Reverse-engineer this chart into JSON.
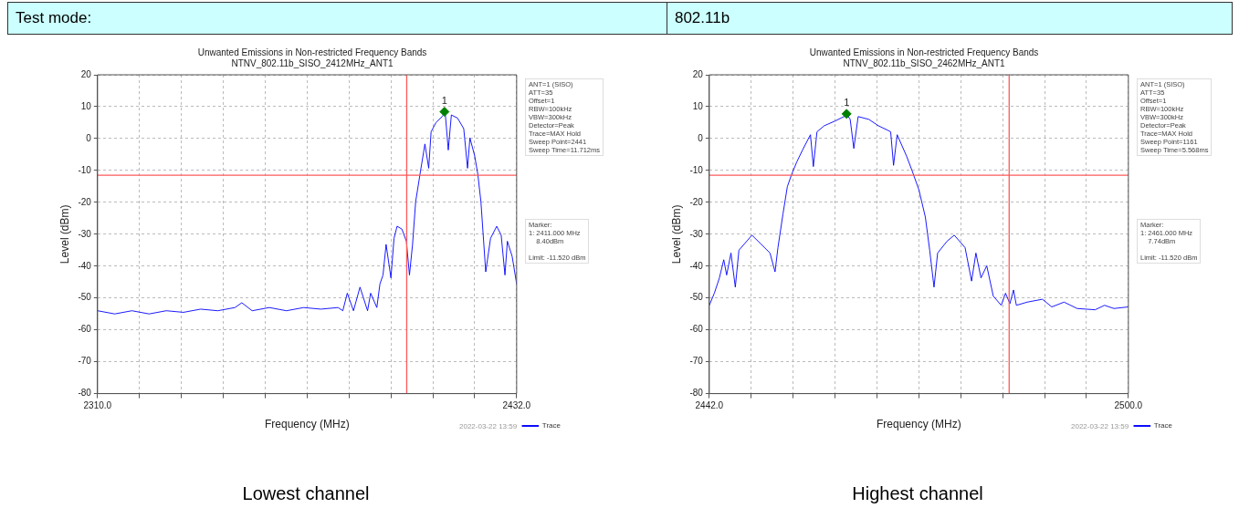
{
  "chart_data": [
    {
      "type": "other",
      "annotations": [
        "Test mode:",
        "802.11b"
      ]
    },
    {
      "type": "line",
      "title": "Unwanted Emissions in Non-restricted Frequency Bands",
      "subtitle": "NTNV_802.11b_SISO_2412MHz_ANT1",
      "xlabel": "Frequency (MHz)",
      "ylabel": "Level (dBm)",
      "xlim": [
        2310,
        2432
      ],
      "xticks": [
        {
          "value": 2310,
          "label": "2310.0"
        },
        {
          "value": 2322.2,
          "label": null
        },
        {
          "value": 2334.4,
          "label": null
        },
        {
          "value": 2346.6,
          "label": null
        },
        {
          "value": 2358.8,
          "label": null
        },
        {
          "value": 2371,
          "label": null
        },
        {
          "value": 2383.2,
          "label": null
        },
        {
          "value": 2395.4,
          "label": null
        },
        {
          "value": 2407.6,
          "label": null
        },
        {
          "value": 2419.8,
          "label": null
        },
        {
          "value": 2432,
          "label": "2432.0"
        }
      ],
      "ylim": [
        -80,
        20
      ],
      "yticks": [
        -80,
        -70,
        -60,
        -50,
        -40,
        -30,
        -20,
        -10,
        0,
        10,
        20
      ],
      "grid": true,
      "legend": "bottom right",
      "series": [
        {
          "name": "Trace",
          "type": "line",
          "color": "#0000ff",
          "marker": "none",
          "x": [
            2310,
            2315,
            2320,
            2325,
            2330,
            2335,
            2340,
            2345,
            2350,
            2352,
            2355,
            2360,
            2365,
            2370,
            2375,
            2380,
            2381.4,
            2382.7,
            2384.5,
            2386.4,
            2388.6,
            2389.5,
            2391.3,
            2392.2,
            2393.1,
            2394,
            2395.4,
            2396.3,
            2397.2,
            2398.6,
            2399.9,
            2400.8,
            2401.7,
            2402.6,
            2404,
            2405.3,
            2406.4,
            2407.1,
            2408.5,
            2410.3,
            2411.2,
            2412.1,
            2413,
            2414.8,
            2416.6,
            2417.7,
            2418.4,
            2419.8,
            2420.7,
            2421.6,
            2423,
            2424.4,
            2426.2,
            2427.5,
            2428.6,
            2429.3,
            2430.7,
            2432
          ],
          "values": [
            -54,
            -55,
            -54,
            -55,
            -54,
            -54.5,
            -53.5,
            -54,
            -53,
            -51.5,
            -54,
            -53,
            -54,
            -53,
            -53.5,
            -53,
            -54,
            -48.5,
            -54,
            -46.6,
            -54,
            -48.5,
            -53,
            -45.6,
            -42.8,
            -33.2,
            -43.7,
            -31.3,
            -27.5,
            -28.4,
            -32.2,
            -42.8,
            -33.2,
            -19.8,
            -10.3,
            -1.7,
            -9.3,
            2.1,
            5,
            6.9,
            8.1,
            -3.6,
            7.4,
            6.4,
            3.1,
            -9.3,
            0.2,
            -5.5,
            -11.2,
            -19.8,
            -41.8,
            -31.3,
            -27.5,
            -30.3,
            -42.8,
            -32.2,
            -37,
            -45.6
          ]
        },
        {
          "type": "scatter",
          "color": "#008000",
          "marker": "diamond",
          "x": [
            2411
          ],
          "values": [
            8.4
          ]
        }
      ],
      "ref_lines": [
        {
          "axis": "y",
          "value": -11.52,
          "color": "#ff5a5a"
        },
        {
          "axis": "x",
          "value": 2400,
          "color": "#ff5a5a"
        }
      ],
      "annotations": [
        "ANT=1 (SISO)\nATT=35\nOffset=1\nRBW=100kHz\nVBW=300kHz\nDetector=Peak\nTrace=MAX Hold\nSweep Point=2441\nSweep Time=11.712ms",
        "Marker:\n1: 2411.000 MHz\n    8.40dBm\n\nLimit: -11.520 dBm",
        "2022-03-22 13:59",
        "Lowest channel",
        {
          "text": "1",
          "x": 2411,
          "y": 8.4
        }
      ]
    },
    {
      "type": "line",
      "title": "Unwanted Emissions in Non-restricted Frequency Bands",
      "subtitle": "NTNV_802.11b_SISO_2462MHz_ANT1",
      "xlabel": "Frequency (MHz)",
      "ylabel": "Level (dBm)",
      "xlim": [
        2442,
        2500
      ],
      "xticks": [
        {
          "value": 2442,
          "label": "2442.0"
        },
        {
          "value": 2447.8,
          "label": null
        },
        {
          "value": 2453.6,
          "label": null
        },
        {
          "value": 2459.4,
          "label": null
        },
        {
          "value": 2465.2,
          "label": null
        },
        {
          "value": 2471,
          "label": null
        },
        {
          "value": 2476.8,
          "label": null
        },
        {
          "value": 2482.6,
          "label": null
        },
        {
          "value": 2488.4,
          "label": null
        },
        {
          "value": 2494.2,
          "label": null
        },
        {
          "value": 2500,
          "label": "2500.0"
        }
      ],
      "ylim": [
        -80,
        20
      ],
      "yticks": [
        -80,
        -70,
        -60,
        -50,
        -40,
        -30,
        -20,
        -10,
        0,
        10,
        20
      ],
      "grid": true,
      "legend": "bottom right",
      "series": [
        {
          "name": "Trace",
          "type": "line",
          "color": "#0000ff",
          "marker": "none",
          "x": [
            2442,
            2442.7,
            2443.4,
            2444,
            2444.4,
            2445,
            2445.6,
            2446.1,
            2446.8,
            2447.9,
            2449.2,
            2450.4,
            2451.1,
            2451.5,
            2452.2,
            2452.8,
            2453.4,
            2454.1,
            2454.9,
            2456,
            2456.4,
            2456.9,
            2457.9,
            2459.4,
            2461.1,
            2461.5,
            2462,
            2462.6,
            2464.1,
            2465.4,
            2466.7,
            2467.1,
            2467.5,
            2468,
            2469.3,
            2470.1,
            2471,
            2471.9,
            2472.5,
            2473.1,
            2473.6,
            2474.9,
            2475.9,
            2477.4,
            2478.3,
            2478.9,
            2479.6,
            2480.4,
            2481.3,
            2482.4,
            2483,
            2483.6,
            2484.1,
            2484.5,
            2486,
            2488.1,
            2489.4,
            2491.1,
            2492.9,
            2495.4,
            2496.7,
            2498,
            2500
          ],
          "values": [
            -52.3,
            -48.5,
            -43.7,
            -38,
            -42.8,
            -35.9,
            -46.6,
            -35,
            -33.2,
            -30.3,
            -33.2,
            -35.9,
            -41.8,
            -34.2,
            -23.6,
            -15.1,
            -11.2,
            -7.4,
            -3.6,
            1.2,
            -8.8,
            2.1,
            4,
            5.5,
            7.4,
            6,
            -3.1,
            6.9,
            6,
            4,
            2.6,
            2.1,
            -8.4,
            1.2,
            -5.5,
            -10.3,
            -16,
            -24.6,
            -35,
            -46.6,
            -35.9,
            -32.2,
            -30.3,
            -34.2,
            -44.7,
            -35.9,
            -43.7,
            -39.9,
            -49.4,
            -52.3,
            -48.5,
            -51.8,
            -47.5,
            -52.3,
            -51.3,
            -50.4,
            -52.8,
            -51.3,
            -53.3,
            -53.7,
            -52.3,
            -53.3,
            -52.8
          ]
        },
        {
          "type": "scatter",
          "color": "#008000",
          "marker": "diamond",
          "x": [
            2461
          ],
          "values": [
            7.74
          ]
        }
      ],
      "ref_lines": [
        {
          "axis": "y",
          "value": -11.52,
          "color": "#ff5a5a"
        },
        {
          "axis": "x",
          "value": 2483.5,
          "color": "#ff5a5a"
        }
      ],
      "annotations": [
        "ANT=1 (SISO)\nATT=35\nOffset=1\nRBW=100kHz\nVBW=300kHz\nDetector=Peak\nTrace=MAX Hold\nSweep Point=1161\nSweep Time=5.568ms",
        "Marker:\n1: 2461.000 MHz\n    7.74dBm\n\nLimit: -11.520 dBm",
        "2022-03-22 13:59",
        "Highest channel",
        {
          "text": "1",
          "x": 2461,
          "y": 7.74
        }
      ]
    }
  ]
}
